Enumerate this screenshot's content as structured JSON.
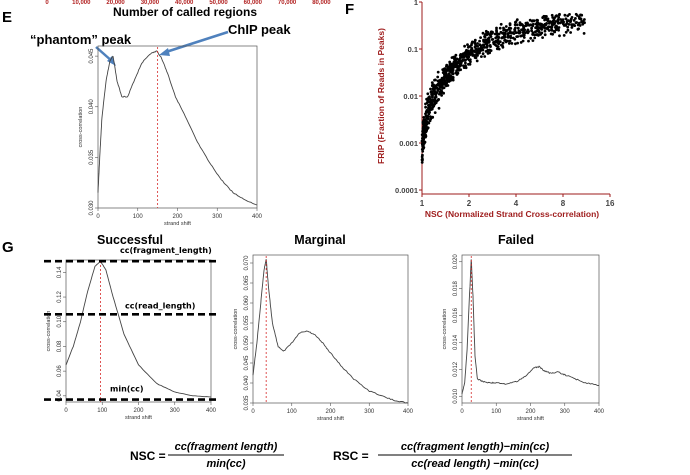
{
  "top_strip": {
    "label": "Number of called regions",
    "ticks": [
      "0",
      "10,000",
      "20,000",
      "30,000",
      "40,000",
      "50,000",
      "60,000",
      "70,000",
      "80,000"
    ]
  },
  "panel_E": {
    "letter": "E",
    "annotations": {
      "phantom": "“phantom” peak",
      "chip": "ChIP peak"
    },
    "chart_data": {
      "type": "line",
      "xlabel": "strand shift",
      "ylabel": "cross-correlation",
      "xlim": [
        0,
        400
      ],
      "ylim": [
        0.03,
        0.046
      ],
      "xticks": [
        "0",
        "100",
        "200",
        "300",
        "400"
      ],
      "yticks": [
        "0.030",
        "0.035",
        "0.040",
        "0.045"
      ],
      "x": [
        0,
        5,
        10,
        20,
        30,
        38,
        48,
        60,
        75,
        90,
        110,
        130,
        148,
        160,
        175,
        195,
        220,
        250,
        280,
        310,
        340,
        370,
        400
      ],
      "y": [
        0.0315,
        0.0355,
        0.039,
        0.0425,
        0.0445,
        0.045,
        0.0425,
        0.041,
        0.041,
        0.0425,
        0.0443,
        0.0452,
        0.0455,
        0.0448,
        0.0433,
        0.041,
        0.039,
        0.0365,
        0.0345,
        0.0328,
        0.0315,
        0.0308,
        0.0303
      ],
      "vline_x": 150
    }
  },
  "panel_F": {
    "letter": "F",
    "chart_data": {
      "type": "scatter",
      "xlabel": "NSC (Normalized Strand Cross-correlation)",
      "ylabel": "FRIP (Fraction of Reads in Peaks)",
      "xscale": "log2",
      "yscale": "log10",
      "xlim": [
        1,
        16
      ],
      "ylim": [
        0.0001,
        1
      ],
      "xticks": [
        "1",
        "2",
        "4",
        "8",
        "16"
      ],
      "yticks": [
        "0.0001",
        "0.001",
        "0.01",
        "0.1",
        "1"
      ],
      "trend": {
        "x": [
          1.0,
          1.05,
          1.1,
          1.2,
          1.35,
          1.6,
          2,
          2.5,
          3,
          4,
          5,
          6,
          8,
          11
        ],
        "y": [
          0.0008,
          0.0025,
          0.005,
          0.01,
          0.02,
          0.04,
          0.08,
          0.13,
          0.17,
          0.23,
          0.28,
          0.32,
          0.37,
          0.42
        ]
      }
    }
  },
  "panel_G": {
    "letter": "G",
    "charts": [
      {
        "title": "Successful",
        "type": "line",
        "xlabel": "strand shift",
        "ylabel": "cross-correlation",
        "xlim": [
          0,
          400
        ],
        "ylim": [
          0.035,
          0.15
        ],
        "xticks": [
          "0",
          "100",
          "200",
          "300",
          "400"
        ],
        "yticks": [
          "0.04",
          "0.06",
          "0.08",
          "0.10",
          "0.12",
          "0.14"
        ],
        "x": [
          0,
          20,
          40,
          60,
          80,
          95,
          110,
          130,
          160,
          200,
          250,
          300,
          350,
          400
        ],
        "y": [
          0.065,
          0.08,
          0.1,
          0.125,
          0.145,
          0.149,
          0.142,
          0.12,
          0.09,
          0.065,
          0.05,
          0.043,
          0.04,
          0.039
        ],
        "vline_x": 95,
        "hlines": [
          {
            "label": "cc(fragment_length)",
            "y": 0.149
          },
          {
            "label": "cc(read_length)",
            "y": 0.106
          },
          {
            "label": "min(cc)",
            "y": 0.037
          }
        ]
      },
      {
        "title": "Marginal",
        "type": "line",
        "xlabel": "strand shift",
        "ylabel": "cross-correlation",
        "xlim": [
          0,
          400
        ],
        "ylim": [
          0.035,
          0.072
        ],
        "xticks": [
          "0",
          "100",
          "200",
          "300",
          "400"
        ],
        "yticks": [
          "0.035",
          "0.040",
          "0.045",
          "0.050",
          "0.055",
          "0.060",
          "0.065",
          "0.070"
        ],
        "x": [
          0,
          10,
          20,
          28,
          34,
          40,
          50,
          65,
          80,
          100,
          120,
          140,
          160,
          180,
          200,
          230,
          260,
          300,
          340,
          370,
          400
        ],
        "y": [
          0.042,
          0.05,
          0.06,
          0.068,
          0.071,
          0.064,
          0.055,
          0.049,
          0.048,
          0.05,
          0.0525,
          0.053,
          0.052,
          0.05,
          0.0475,
          0.044,
          0.041,
          0.038,
          0.0365,
          0.0355,
          0.035
        ],
        "vline_x": 34
      },
      {
        "title": "Failed",
        "type": "line",
        "xlabel": "strand shift",
        "ylabel": "cross-correlation",
        "xlim": [
          0,
          400
        ],
        "ylim": [
          0.0095,
          0.0205
        ],
        "xticks": [
          "0",
          "100",
          "200",
          "300",
          "400"
        ],
        "yticks": [
          "0.010",
          "0.012",
          "0.014",
          "0.016",
          "0.018",
          "0.020"
        ],
        "x": [
          0,
          8,
          15,
          22,
          27,
          32,
          38,
          45,
          60,
          80,
          100,
          130,
          160,
          185,
          210,
          225,
          240,
          260,
          280,
          300,
          330,
          360,
          400
        ],
        "y": [
          0.0102,
          0.011,
          0.0135,
          0.0175,
          0.0202,
          0.0175,
          0.013,
          0.0113,
          0.0111,
          0.011,
          0.011,
          0.0109,
          0.0111,
          0.0115,
          0.0121,
          0.0122,
          0.0119,
          0.0117,
          0.0118,
          0.0116,
          0.0113,
          0.011,
          0.0108
        ],
        "vline_x": 27
      }
    ]
  },
  "formulas": {
    "nsc": {
      "lhs": "NSC =",
      "num": "cc(fragment length)",
      "den": "min(cc)"
    },
    "rsc": {
      "lhs": "RSC =",
      "num": "cc(fragment length)−min(cc)",
      "den": "cc(read length) −min(cc)"
    }
  },
  "colors": {
    "red_line": "#d62b2b",
    "dark_red": "#9e1b1b",
    "arrow_blue": "#4f81bd",
    "curve": "#444444"
  }
}
